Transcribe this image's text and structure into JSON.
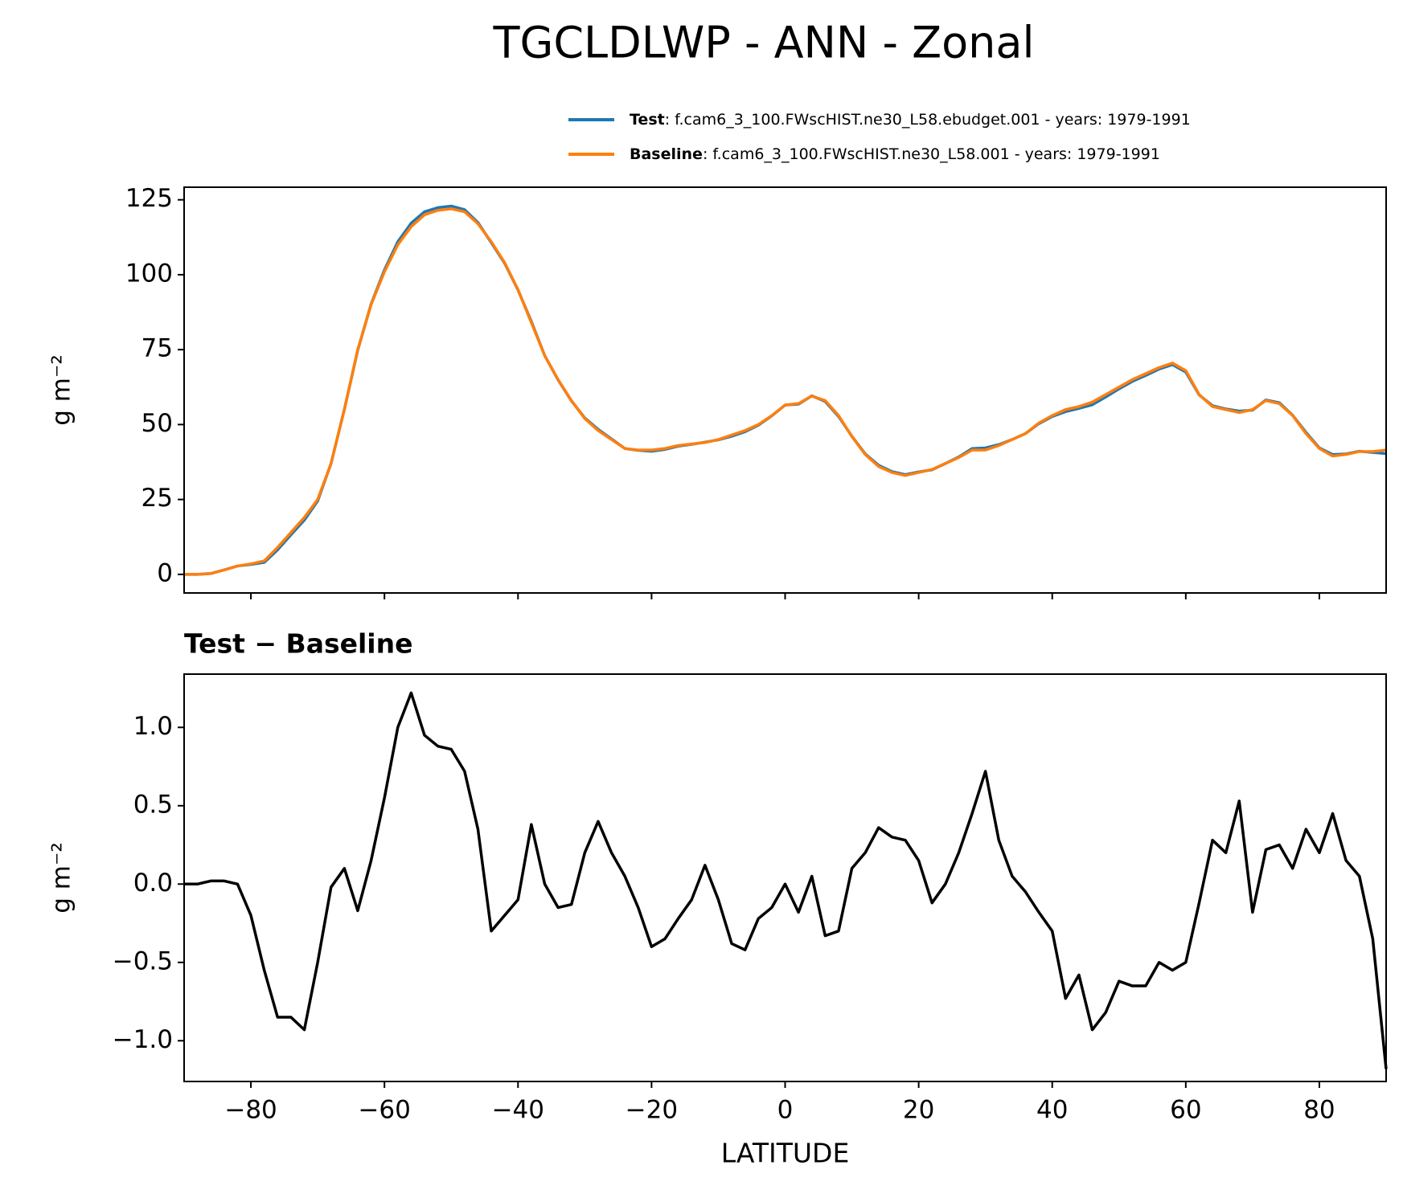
{
  "title": "TGCLDLWP - ANN - Zonal",
  "chart_data": [
    {
      "type": "line",
      "ylabel": "g m⁻²",
      "legend": "upper right",
      "tick_labels": false,
      "x": [
        -90,
        -88,
        -86,
        -84,
        -82,
        -80,
        -78,
        -76,
        -74,
        -72,
        -70,
        -68,
        -66,
        -64,
        -62,
        -60,
        -58,
        -56,
        -54,
        -52,
        -50,
        -48,
        -46,
        -44,
        -42,
        -40,
        -38,
        -36,
        -34,
        -32,
        -30,
        -28,
        -26,
        -24,
        -22,
        -20,
        -18,
        -16,
        -14,
        -12,
        -10,
        -8,
        -6,
        -4,
        -2,
        0,
        2,
        4,
        6,
        8,
        10,
        12,
        14,
        16,
        18,
        20,
        22,
        24,
        26,
        28,
        30,
        32,
        34,
        36,
        38,
        40,
        42,
        44,
        46,
        48,
        50,
        52,
        54,
        56,
        58,
        60,
        62,
        64,
        66,
        68,
        70,
        72,
        74,
        76,
        78,
        80,
        82,
        84,
        86,
        88,
        90
      ],
      "series": [
        {
          "name": "Test",
          "label": ": f.cam6_3_100.FWscHIST.ne30_L58.ebudget.001 - years: 1979-1991",
          "color": "#1f77b4",
          "values": [
            0,
            0,
            0.3,
            1.5,
            2.8,
            3.3,
            4.0,
            8.2,
            13.2,
            18.1,
            24.5,
            37,
            55.1,
            74.8,
            90.2,
            101.6,
            111,
            117.2,
            121,
            122.4,
            122.9,
            121.7,
            117.4,
            110.7,
            103.8,
            94.9,
            84.4,
            73,
            64.9,
            57.9,
            52.2,
            48.4,
            45.2,
            42,
            41.4,
            41.1,
            41.7,
            42.8,
            43.4,
            44.1,
            44.9,
            46.1,
            47.6,
            49.8,
            52.9,
            56.5,
            56.8,
            59.6,
            57.7,
            52.7,
            46.1,
            40.2,
            36.4,
            34.3,
            33.3,
            34.2,
            34.9,
            37,
            39.2,
            42,
            42.2,
            43.3,
            45,
            47,
            50.3,
            52.7,
            54.3,
            55.4,
            56.6,
            59.2,
            61.9,
            64.4,
            66.4,
            68.5,
            70,
            67.5,
            59.9,
            56.3,
            55.2,
            54.5,
            54.8,
            58.2,
            57.3,
            53.1,
            47.4,
            42.2,
            40,
            40.2,
            41.1,
            40.7,
            40.3
          ]
        },
        {
          "name": "Baseline",
          "label": ": f.cam6_3_100.FWscHIST.ne30_L58.001 - years: 1979-1991",
          "color": "#ff7f0e",
          "values": [
            0,
            0,
            0.3,
            1.5,
            2.8,
            3.5,
            4.5,
            9,
            14,
            19,
            25,
            37,
            55,
            75,
            90,
            101,
            110,
            116,
            120,
            121.5,
            122,
            121,
            117,
            111,
            104,
            95,
            84,
            73,
            65,
            58,
            52,
            48,
            45,
            42,
            41.5,
            41.5,
            42,
            43,
            43.5,
            44,
            45,
            46.5,
            48,
            50,
            53,
            56.5,
            57,
            59.5,
            58,
            53,
            46,
            40,
            36,
            34,
            33,
            34,
            35,
            37,
            39,
            41.5,
            41.5,
            43,
            45,
            47,
            50.5,
            53,
            55,
            56,
            57.5,
            60,
            62.5,
            65,
            67,
            69,
            70.5,
            68,
            60,
            56,
            55,
            54,
            55,
            58,
            57,
            53,
            47,
            42,
            39.5,
            40,
            41,
            41,
            41.5
          ]
        }
      ],
      "xlim": [
        -90,
        90
      ],
      "xticks": [
        {
          "value": -80,
          "label": "−80"
        },
        {
          "value": -60,
          "label": "−60"
        },
        {
          "value": -40,
          "label": "−40"
        },
        {
          "value": -20,
          "label": "−20"
        },
        0,
        20,
        40,
        60,
        80
      ],
      "ylim": [
        -6.2,
        129.2
      ],
      "yticks": [
        0,
        25,
        50,
        75,
        100,
        125
      ]
    },
    {
      "type": "line",
      "title": "Test − Baseline",
      "xlabel": "LATITUDE",
      "ylabel": "g m⁻²",
      "x": [
        -90,
        -88,
        -86,
        -84,
        -82,
        -80,
        -78,
        -76,
        -74,
        -72,
        -70,
        -68,
        -66,
        -64,
        -62,
        -60,
        -58,
        -56,
        -54,
        -52,
        -50,
        -48,
        -46,
        -44,
        -42,
        -40,
        -38,
        -36,
        -34,
        -32,
        -30,
        -28,
        -26,
        -24,
        -22,
        -20,
        -18,
        -16,
        -14,
        -12,
        -10,
        -8,
        -6,
        -4,
        -2,
        0,
        2,
        4,
        6,
        8,
        10,
        12,
        14,
        16,
        18,
        20,
        22,
        24,
        26,
        28,
        30,
        32,
        34,
        36,
        38,
        40,
        42,
        44,
        46,
        48,
        50,
        52,
        54,
        56,
        58,
        60,
        62,
        64,
        66,
        68,
        70,
        72,
        74,
        76,
        78,
        80,
        82,
        84,
        86,
        88,
        90
      ],
      "color": "#000000",
      "values": [
        0,
        0,
        0.02,
        0.02,
        0,
        -0.2,
        -0.55,
        -0.85,
        -0.85,
        -0.93,
        -0.5,
        -0.02,
        0.1,
        -0.17,
        0.15,
        0.55,
        1.0,
        1.22,
        0.95,
        0.88,
        0.86,
        0.72,
        0.35,
        -0.3,
        -0.2,
        -0.1,
        0.38,
        0,
        -0.15,
        -0.13,
        0.2,
        0.4,
        0.2,
        0.05,
        -0.15,
        -0.4,
        -0.35,
        -0.22,
        -0.1,
        0.12,
        -0.1,
        -0.38,
        -0.42,
        -0.22,
        -0.15,
        0,
        -0.18,
        0.05,
        -0.33,
        -0.3,
        0.1,
        0.2,
        0.36,
        0.3,
        0.28,
        0.15,
        -0.12,
        0,
        0.2,
        0.45,
        0.72,
        0.28,
        0.05,
        -0.05,
        -0.18,
        -0.3,
        -0.73,
        -0.58,
        -0.93,
        -0.82,
        -0.62,
        -0.65,
        -0.65,
        -0.5,
        -0.55,
        -0.5,
        -0.12,
        0.28,
        0.2,
        0.53,
        -0.18,
        0.22,
        0.25,
        0.1,
        0.35,
        0.2,
        0.45,
        0.15,
        0.05,
        -0.35,
        -1.18
      ],
      "xlim": [
        -90,
        90
      ],
      "xticks": [
        {
          "value": -80,
          "label": "−80"
        },
        {
          "value": -60,
          "label": "−60"
        },
        {
          "value": -40,
          "label": "−40"
        },
        {
          "value": -20,
          "label": "−20"
        },
        0,
        20,
        40,
        60,
        80
      ],
      "ylim": [
        -1.26,
        1.34
      ],
      "yticks": [
        {
          "value": -1,
          "label": "−1.0"
        },
        {
          "value": -0.5,
          "label": "−0.5"
        },
        {
          "value": 0,
          "label": "0.0"
        },
        {
          "value": 0.5,
          "label": "0.5"
        },
        {
          "value": 1,
          "label": "1.0"
        }
      ]
    }
  ]
}
